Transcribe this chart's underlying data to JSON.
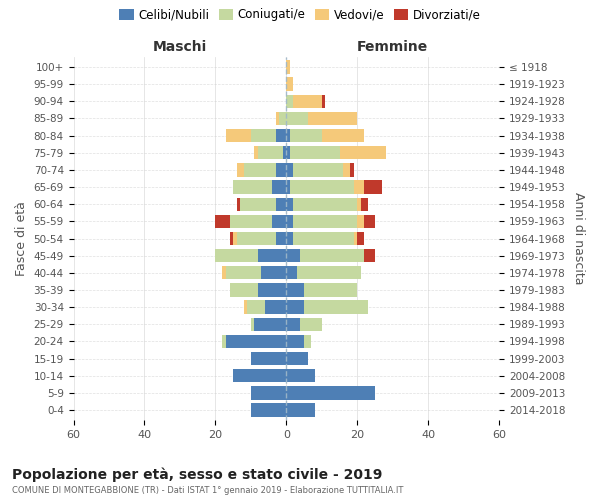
{
  "age_groups": [
    "0-4",
    "5-9",
    "10-14",
    "15-19",
    "20-24",
    "25-29",
    "30-34",
    "35-39",
    "40-44",
    "45-49",
    "50-54",
    "55-59",
    "60-64",
    "65-69",
    "70-74",
    "75-79",
    "80-84",
    "85-89",
    "90-94",
    "95-99",
    "100+"
  ],
  "birth_years": [
    "2014-2018",
    "2009-2013",
    "2004-2008",
    "1999-2003",
    "1994-1998",
    "1989-1993",
    "1984-1988",
    "1979-1983",
    "1974-1978",
    "1969-1973",
    "1964-1968",
    "1959-1963",
    "1954-1958",
    "1949-1953",
    "1944-1948",
    "1939-1943",
    "1934-1938",
    "1929-1933",
    "1924-1928",
    "1919-1923",
    "≤ 1918"
  ],
  "maschi": {
    "celibi": [
      10,
      10,
      15,
      10,
      17,
      9,
      6,
      8,
      7,
      8,
      3,
      4,
      3,
      4,
      3,
      1,
      3,
      0,
      0,
      0,
      0
    ],
    "coniugati": [
      0,
      0,
      0,
      0,
      1,
      1,
      5,
      8,
      10,
      12,
      11,
      12,
      10,
      11,
      9,
      7,
      7,
      2,
      0,
      0,
      0
    ],
    "vedovi": [
      0,
      0,
      0,
      0,
      0,
      0,
      1,
      0,
      1,
      0,
      1,
      0,
      0,
      0,
      2,
      1,
      7,
      1,
      0,
      0,
      0
    ],
    "divorziati": [
      0,
      0,
      0,
      0,
      0,
      0,
      0,
      0,
      0,
      0,
      1,
      4,
      1,
      0,
      0,
      0,
      0,
      0,
      0,
      0,
      0
    ]
  },
  "femmine": {
    "nubili": [
      8,
      25,
      8,
      6,
      5,
      4,
      5,
      5,
      3,
      4,
      2,
      2,
      2,
      1,
      2,
      1,
      1,
      0,
      0,
      0,
      0
    ],
    "coniugate": [
      0,
      0,
      0,
      0,
      2,
      6,
      18,
      15,
      18,
      18,
      17,
      18,
      18,
      18,
      14,
      14,
      9,
      6,
      2,
      0,
      0
    ],
    "vedove": [
      0,
      0,
      0,
      0,
      0,
      0,
      0,
      0,
      0,
      0,
      1,
      2,
      1,
      3,
      2,
      13,
      12,
      14,
      8,
      2,
      1
    ],
    "divorziate": [
      0,
      0,
      0,
      0,
      0,
      0,
      0,
      0,
      0,
      3,
      2,
      3,
      2,
      5,
      1,
      0,
      0,
      0,
      1,
      0,
      0
    ]
  },
  "colors": {
    "celibi_nubili": "#4e7fb5",
    "coniugati": "#c5d9a0",
    "vedovi": "#f5c97a",
    "divorziati": "#c0392b"
  },
  "xlim": 60,
  "title": "Popolazione per età, sesso e stato civile - 2019",
  "subtitle": "COMUNE DI MONTEGABBIONE (TR) - Dati ISTAT 1° gennaio 2019 - Elaborazione TUTTITALIA.IT",
  "ylabel_left": "Fasce di età",
  "ylabel_right": "Anni di nascita",
  "xlabel_left": "Maschi",
  "xlabel_right": "Femmine",
  "legend_labels": [
    "Celibi/Nubili",
    "Coniugati/e",
    "Vedovi/e",
    "Divorziati/e"
  ],
  "background_color": "#ffffff",
  "grid_color": "#cccccc"
}
